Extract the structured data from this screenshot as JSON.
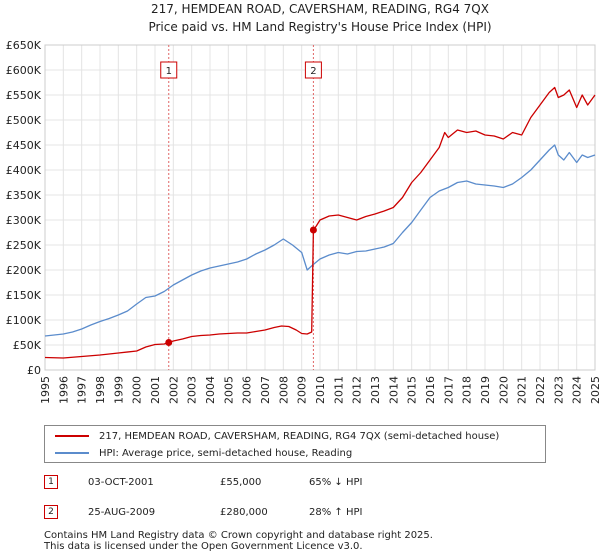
{
  "title_lines": [
    "217, HEMDEAN ROAD, CAVERSHAM, READING, RG4 7QX",
    "Price paid vs. HM Land Registry's House Price Index (HPI)"
  ],
  "chart_data": {
    "type": "line",
    "title": "217, HEMDEAN ROAD, CAVERSHAM, READING, RG4 7QX — Price paid vs. HM Land Registry's House Price Index (HPI)",
    "xlabel": "",
    "ylabel": "",
    "xlim": [
      1995,
      2025
    ],
    "ylim": [
      0,
      650000
    ],
    "x_ticks": [
      "1995",
      "1996",
      "1997",
      "1998",
      "1999",
      "2000",
      "2001",
      "2002",
      "2003",
      "2004",
      "2005",
      "2006",
      "2007",
      "2008",
      "2009",
      "2010",
      "2011",
      "2012",
      "2013",
      "2014",
      "2015",
      "2016",
      "2017",
      "2018",
      "2019",
      "2020",
      "2021",
      "2022",
      "2023",
      "2024",
      "2025"
    ],
    "y_ticks": [
      {
        "value": 0,
        "label": "£0"
      },
      {
        "value": 50000,
        "label": "£50K"
      },
      {
        "value": 100000,
        "label": "£100K"
      },
      {
        "value": 150000,
        "label": "£150K"
      },
      {
        "value": 200000,
        "label": "£200K"
      },
      {
        "value": 250000,
        "label": "£250K"
      },
      {
        "value": 300000,
        "label": "£300K"
      },
      {
        "value": 350000,
        "label": "£350K"
      },
      {
        "value": 400000,
        "label": "£400K"
      },
      {
        "value": 450000,
        "label": "£450K"
      },
      {
        "value": 500000,
        "label": "£500K"
      },
      {
        "value": 550000,
        "label": "£550K"
      },
      {
        "value": 600000,
        "label": "£600K"
      },
      {
        "value": 650000,
        "label": "£650K"
      }
    ],
    "grid": true,
    "series": [
      {
        "name": "217, HEMDEAN ROAD, CAVERSHAM, READING, RG4 7QX (semi-detached house)",
        "color": "#cc0000",
        "x": [
          1995.0,
          1996.0,
          1997.0,
          1998.0,
          1999.0,
          2000.0,
          2000.5,
          2001.0,
          2001.5,
          2001.75,
          2002.0,
          2002.5,
          2003.0,
          2003.5,
          2004.0,
          2004.5,
          2005.0,
          2005.5,
          2006.0,
          2006.5,
          2007.0,
          2007.5,
          2007.9,
          2008.3,
          2008.7,
          2009.0,
          2009.3,
          2009.55,
          2009.64,
          2009.8,
          2010.0,
          2010.5,
          2011.0,
          2011.5,
          2012.0,
          2012.5,
          2013.0,
          2013.5,
          2014.0,
          2014.5,
          2015.0,
          2015.5,
          2016.0,
          2016.5,
          2016.8,
          2017.0,
          2017.5,
          2018.0,
          2018.5,
          2019.0,
          2019.5,
          2020.0,
          2020.5,
          2021.0,
          2021.5,
          2022.0,
          2022.5,
          2022.8,
          2023.0,
          2023.3,
          2023.6,
          2024.0,
          2024.3,
          2024.6,
          2025.0
        ],
        "y": [
          25000,
          24000,
          27000,
          30000,
          34000,
          38000,
          46000,
          51000,
          52000,
          55000,
          58000,
          62000,
          67000,
          69000,
          70000,
          72000,
          73000,
          74000,
          74000,
          77000,
          80000,
          85000,
          88000,
          87000,
          80000,
          73000,
          72000,
          76000,
          280000,
          288000,
          300000,
          308000,
          310000,
          305000,
          300000,
          307000,
          312000,
          318000,
          325000,
          345000,
          375000,
          395000,
          420000,
          445000,
          475000,
          465000,
          480000,
          475000,
          478000,
          470000,
          468000,
          462000,
          475000,
          470000,
          505000,
          530000,
          555000,
          565000,
          545000,
          550000,
          560000,
          525000,
          550000,
          530000,
          550000
        ]
      },
      {
        "name": "HPI: Average price, semi-detached house, Reading",
        "color": "#5b8ccc",
        "x": [
          1995.0,
          1995.5,
          1996.0,
          1996.5,
          1997.0,
          1997.5,
          1998.0,
          1998.5,
          1999.0,
          1999.5,
          2000.0,
          2000.5,
          2001.0,
          2001.5,
          2002.0,
          2002.5,
          2003.0,
          2003.5,
          2004.0,
          2004.5,
          2005.0,
          2005.5,
          2006.0,
          2006.5,
          2007.0,
          2007.5,
          2008.0,
          2008.5,
          2009.0,
          2009.3,
          2009.6,
          2010.0,
          2010.5,
          2011.0,
          2011.5,
          2012.0,
          2012.5,
          2013.0,
          2013.5,
          2014.0,
          2014.5,
          2015.0,
          2015.5,
          2016.0,
          2016.5,
          2017.0,
          2017.5,
          2018.0,
          2018.5,
          2019.0,
          2019.5,
          2020.0,
          2020.5,
          2021.0,
          2021.5,
          2022.0,
          2022.5,
          2022.8,
          2023.0,
          2023.3,
          2023.6,
          2024.0,
          2024.3,
          2024.6,
          2025.0
        ],
        "y": [
          68000,
          70000,
          72000,
          76000,
          82000,
          90000,
          97000,
          103000,
          110000,
          118000,
          132000,
          145000,
          148000,
          157000,
          170000,
          180000,
          190000,
          198000,
          204000,
          208000,
          212000,
          216000,
          222000,
          232000,
          240000,
          250000,
          262000,
          250000,
          235000,
          200000,
          210000,
          222000,
          230000,
          235000,
          232000,
          237000,
          238000,
          242000,
          246000,
          253000,
          275000,
          295000,
          320000,
          345000,
          358000,
          365000,
          375000,
          378000,
          372000,
          370000,
          368000,
          365000,
          372000,
          385000,
          400000,
          420000,
          440000,
          450000,
          430000,
          420000,
          435000,
          415000,
          430000,
          425000,
          430000
        ]
      }
    ],
    "annotations": [
      {
        "label": "1",
        "x": 2001.75,
        "y": 55000
      },
      {
        "label": "2",
        "x": 2009.64,
        "y": 280000
      }
    ]
  },
  "legend": {
    "items": [
      {
        "label": "217, HEMDEAN ROAD, CAVERSHAM, READING, RG4 7QX (semi-detached house)",
        "color": "#cc0000"
      },
      {
        "label": "HPI: Average price, semi-detached house, Reading",
        "color": "#5b8ccc"
      }
    ]
  },
  "sales": [
    {
      "num": "1",
      "date": "03-OCT-2001",
      "price": "£55,000",
      "hpi": "65% ↓ HPI"
    },
    {
      "num": "2",
      "date": "25-AUG-2009",
      "price": "£280,000",
      "hpi": "28% ↑ HPI"
    }
  ],
  "footer": {
    "line1": "Contains HM Land Registry data © Crown copyright and database right 2025.",
    "line2": "This data is licensed under the Open Government Licence v3.0."
  }
}
